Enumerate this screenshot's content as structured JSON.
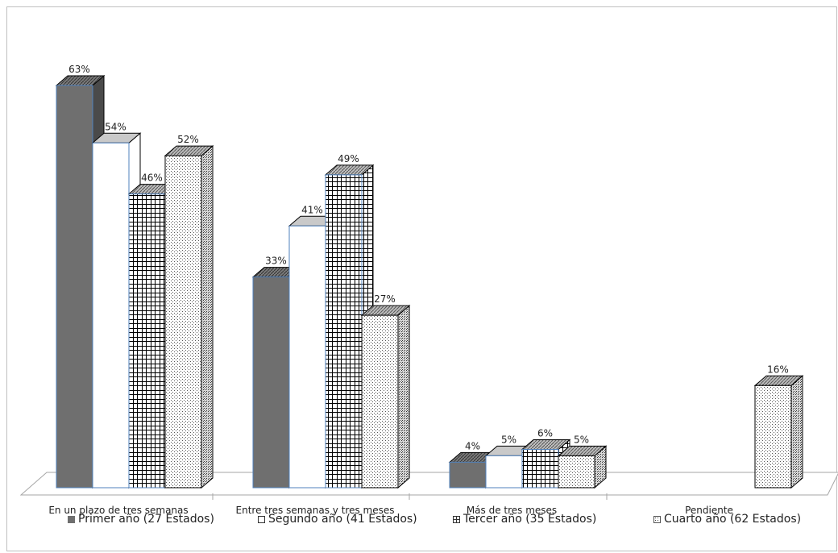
{
  "chart_data": {
    "type": "bar",
    "categories": [
      "En un plazo de tres semanas",
      "Entre tres semanas y tres meses",
      "Más de tres meses",
      "Pendiente"
    ],
    "series": [
      {
        "name": "Primer año (27 Estados)",
        "values": [
          63,
          33,
          4,
          null
        ],
        "labels": [
          "63%",
          "33%",
          "4%",
          ""
        ]
      },
      {
        "name": "Segundo año (41 Estados)",
        "values": [
          54,
          41,
          5,
          null
        ],
        "labels": [
          "54%",
          "41%",
          "5%",
          ""
        ]
      },
      {
        "name": "Tercer año (35 Estados)",
        "values": [
          46,
          49,
          6,
          null
        ],
        "labels": [
          "46%",
          "49%",
          "6%",
          ""
        ]
      },
      {
        "name": "Cuarto año (62 Estados)",
        "values": [
          52,
          27,
          5,
          16
        ],
        "labels": [
          "52%",
          "27%",
          "5%",
          "16%"
        ]
      }
    ],
    "ylim": [
      0,
      63
    ],
    "legend_position": "bottom",
    "colors": {
      "primer": "#6f6f6f",
      "segundo": "#ffffff",
      "tercer": "#ffffff",
      "cuarto": "#ffffff",
      "outline": "#000000",
      "highlight": "#4f81bd"
    }
  }
}
